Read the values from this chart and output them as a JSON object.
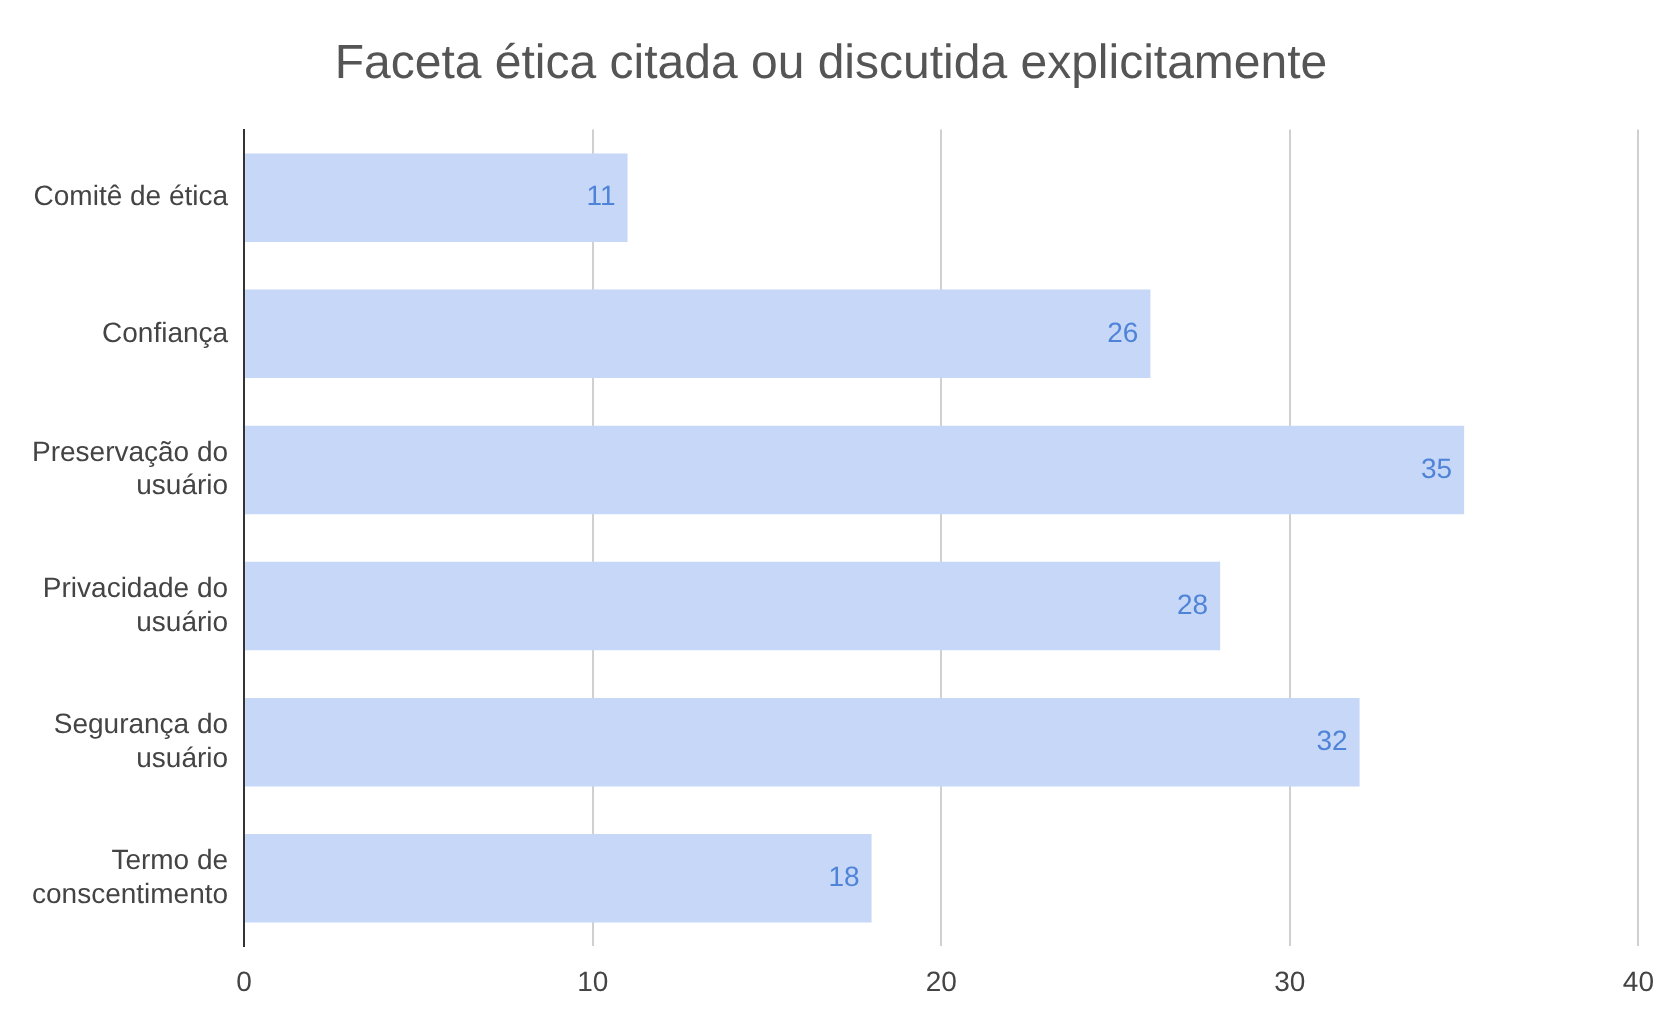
{
  "chart_data": {
    "type": "bar",
    "orientation": "horizontal",
    "title": "Faceta ética citada ou discutida explicitamente",
    "categories": [
      "Comitê de ética",
      "Confiança",
      "Preservação do usuário",
      "Privacidade do usuário",
      "Segurança do usuário",
      "Termo de conscentimento"
    ],
    "values": [
      11,
      26,
      35,
      28,
      32,
      18
    ],
    "color": "#c6d7f7",
    "xlim": [
      0,
      40
    ],
    "xticks": [
      0,
      10,
      20,
      30,
      40
    ],
    "grid": "x",
    "data_labels": true,
    "legend": false
  }
}
